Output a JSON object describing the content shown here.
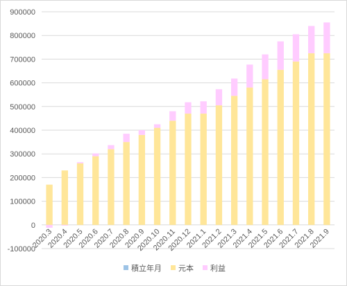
{
  "chart_data": {
    "type": "bar",
    "stacked": true,
    "categories": [
      "2020.3",
      "2020.4",
      "2020.5",
      "2020.6",
      "2020.7",
      "2020.8",
      "2020.9",
      "2020.10",
      "2020.11",
      "2020.12",
      "2021.1",
      "2021.2",
      "2021.3",
      "2021.4",
      "2021.5",
      "2021.6",
      "2021.7",
      "2021.8",
      "2021.9"
    ],
    "series": [
      {
        "name": "積立年月",
        "color": "#9dc3e6",
        "values": [
          0,
          0,
          0,
          0,
          0,
          0,
          0,
          0,
          0,
          0,
          0,
          0,
          0,
          0,
          0,
          0,
          0,
          0,
          0
        ]
      },
      {
        "name": "元本",
        "color": "#ffe699",
        "values": [
          170000,
          230000,
          260000,
          290000,
          320000,
          350000,
          380000,
          410000,
          440000,
          470000,
          470000,
          505000,
          545000,
          580000,
          615000,
          655000,
          690000,
          725000,
          725000
        ]
      },
      {
        "name": "利益",
        "color": "#ffccff",
        "values": [
          -12000,
          -3000,
          5000,
          12000,
          17000,
          35000,
          20000,
          15000,
          40000,
          48000,
          52000,
          68000,
          73000,
          97000,
          105000,
          120000,
          115000,
          115000,
          130000
        ]
      }
    ],
    "ylim": [
      -100000,
      900000
    ],
    "yticks": [
      "-100000",
      "0",
      "100000",
      "200000",
      "300000",
      "400000",
      "500000",
      "600000",
      "700000",
      "800000",
      "900000"
    ],
    "grid": true,
    "legend_position": "bottom"
  }
}
